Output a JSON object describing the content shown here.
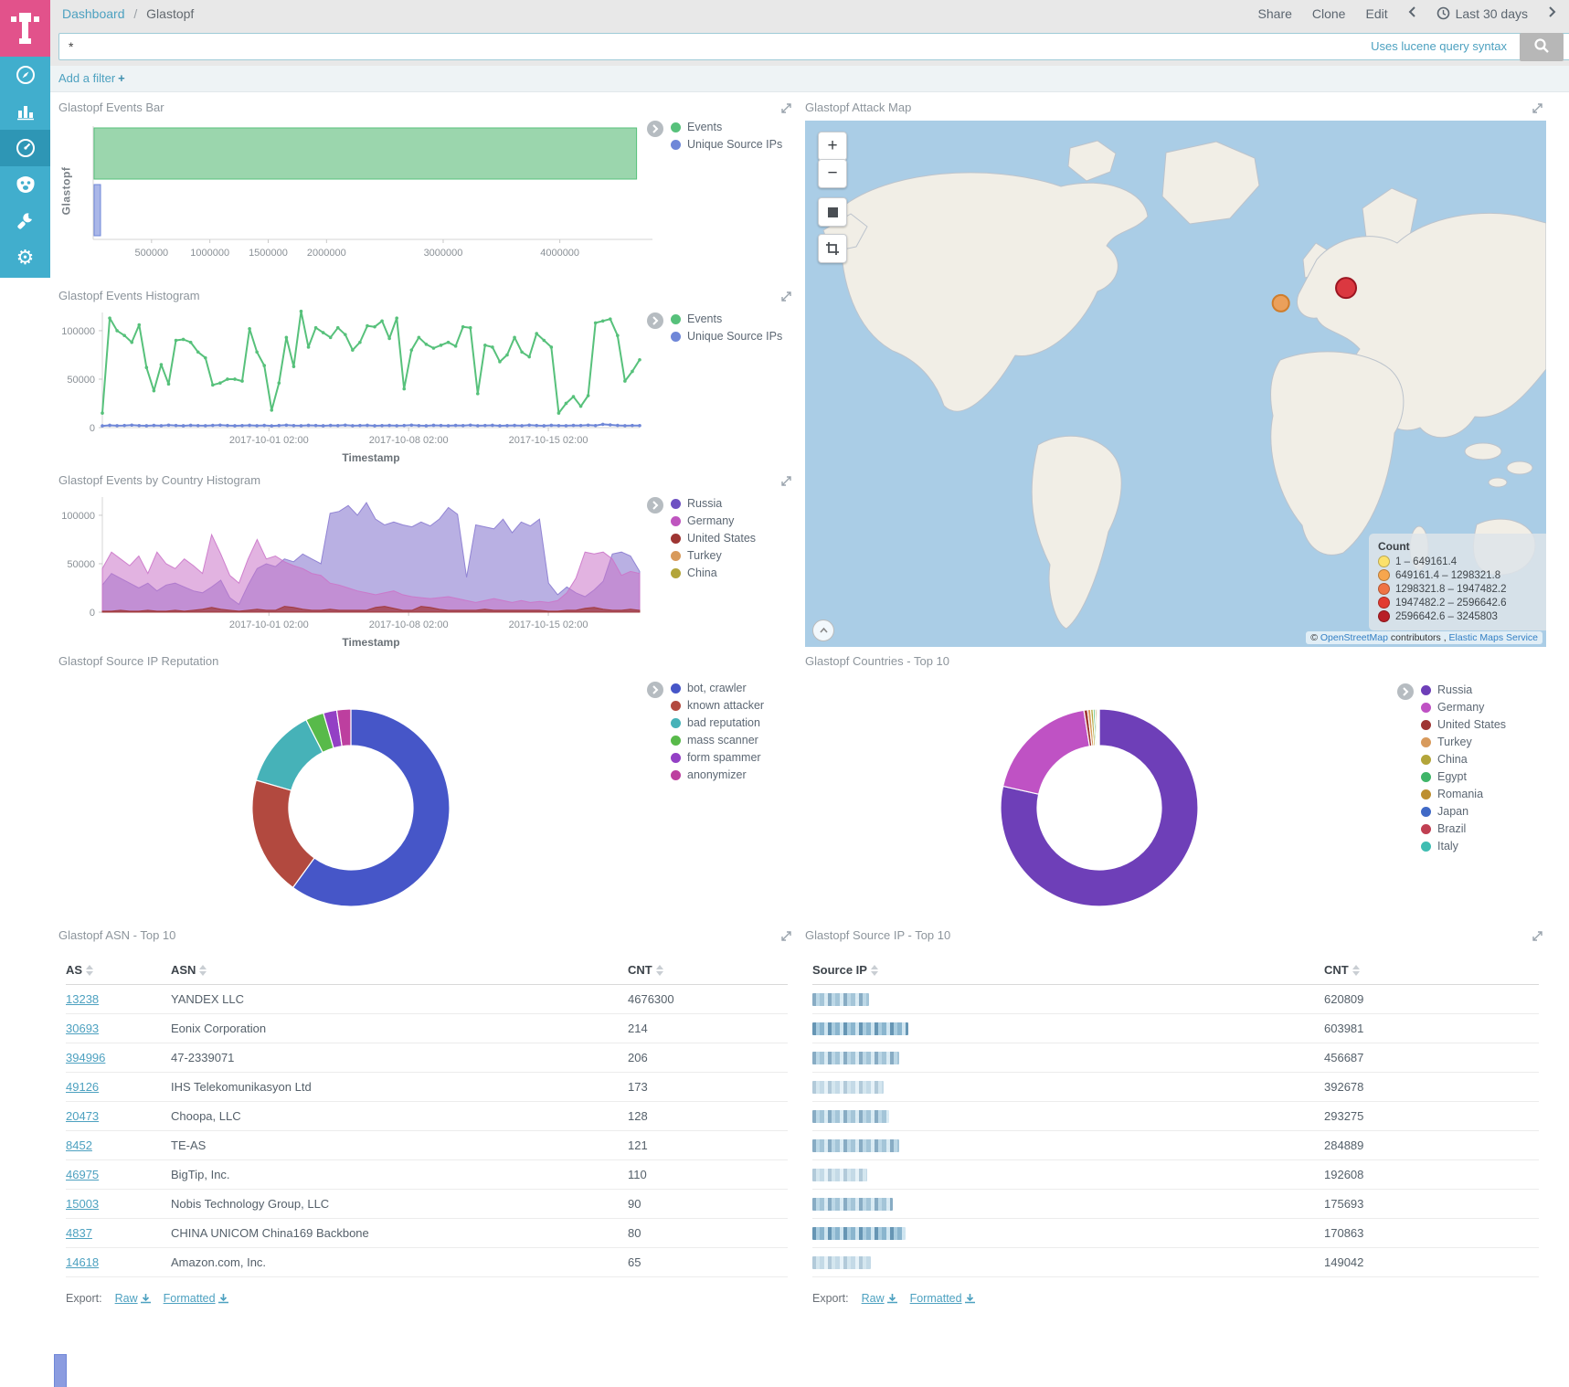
{
  "app": {
    "breadcrumb": {
      "root": "Dashboard",
      "sep": "/",
      "current": "Glastopf"
    },
    "actions": {
      "share": "Share",
      "clone": "Clone",
      "edit": "Edit",
      "time_range": "Last 30 days"
    },
    "query": {
      "value": "*",
      "hint": "Uses lucene query syntax"
    },
    "filter_bar": {
      "add_filter": "Add a filter",
      "plus": "+"
    }
  },
  "sidebar": {
    "items": [
      "discover",
      "visualize",
      "dashboard",
      "timelion",
      "dev-tools",
      "management"
    ],
    "active": "dashboard"
  },
  "panels": {
    "events_bar": {
      "title": "Glastopf Events Bar",
      "ylabel": "Glastopf"
    },
    "events_histogram": {
      "title": "Glastopf Events Histogram",
      "xlabel": "Timestamp"
    },
    "country_histogram": {
      "title": "Glastopf Events by Country Histogram",
      "xlabel": "Timestamp"
    },
    "attack_map": {
      "title": "Glastopf Attack Map",
      "controls": {
        "zoom_in": "+",
        "zoom_out": "−"
      },
      "legend_title": "Count",
      "legend_ranges": [
        {
          "label": "1 – 649161.4",
          "color": "#fbe16b"
        },
        {
          "label": "649161.4 – 1298321.8",
          "color": "#f7a64e"
        },
        {
          "label": "1298321.8 – 1947482.2",
          "color": "#ef7344"
        },
        {
          "label": "1947482.2 – 2596642.6",
          "color": "#e23b31"
        },
        {
          "label": "2596642.6 – 3245803",
          "color": "#b81f26"
        }
      ],
      "attribution": {
        "prefix": "©",
        "link1": "OpenStreetMap",
        "mid": "contributors ,",
        "link2": "Elastic Maps Service"
      }
    },
    "reputation_pie": {
      "title": "Glastopf Source IP Reputation"
    },
    "countries_pie": {
      "title": "Glastopf Countries - Top 10"
    },
    "asn_table": {
      "title": "Glastopf ASN - Top 10",
      "columns": [
        "AS",
        "ASN",
        "CNT"
      ],
      "rows": [
        {
          "as": "13238",
          "asn": "YANDEX LLC",
          "cnt": "4676300"
        },
        {
          "as": "30693",
          "asn": "Eonix Corporation",
          "cnt": "214"
        },
        {
          "as": "394996",
          "asn": "47-2339071",
          "cnt": "206"
        },
        {
          "as": "49126",
          "asn": "IHS Telekomunikasyon Ltd",
          "cnt": "173"
        },
        {
          "as": "20473",
          "asn": "Choopa, LLC",
          "cnt": "128"
        },
        {
          "as": "8452",
          "asn": "TE-AS",
          "cnt": "121"
        },
        {
          "as": "46975",
          "asn": "BigTip, Inc.",
          "cnt": "110"
        },
        {
          "as": "15003",
          "asn": "Nobis Technology Group, LLC",
          "cnt": "90"
        },
        {
          "as": "4837",
          "asn": "CHINA UNICOM China169 Backbone",
          "cnt": "80"
        },
        {
          "as": "14618",
          "asn": "Amazon.com, Inc.",
          "cnt": "65"
        }
      ],
      "export": {
        "label": "Export:",
        "raw": "Raw",
        "formatted": "Formatted"
      }
    },
    "ip_table": {
      "title": "Glastopf Source IP - Top 10",
      "columns": [
        "Source IP",
        "CNT"
      ],
      "rows": [
        {
          "masked": true,
          "blur_width": 62,
          "tone": "t-med",
          "cnt": "620809"
        },
        {
          "masked": true,
          "blur_width": 105,
          "tone": "t-dark",
          "cnt": "603981"
        },
        {
          "masked": true,
          "blur_width": 95,
          "tone": "t-med",
          "cnt": "456687"
        },
        {
          "masked": true,
          "blur_width": 78,
          "tone": "t-light",
          "cnt": "392678"
        },
        {
          "masked": true,
          "blur_width": 84,
          "tone": "t-med",
          "cnt": "293275"
        },
        {
          "masked": true,
          "blur_width": 95,
          "tone": "t-med",
          "cnt": "284889"
        },
        {
          "masked": true,
          "blur_width": 60,
          "tone": "t-light",
          "cnt": "192608"
        },
        {
          "masked": true,
          "blur_width": 88,
          "tone": "t-med",
          "cnt": "175693"
        },
        {
          "masked": true,
          "blur_width": 102,
          "tone": "t-dark",
          "cnt": "170863"
        },
        {
          "masked": true,
          "blur_width": 64,
          "tone": "t-light",
          "cnt": "149042"
        }
      ],
      "export": {
        "label": "Export:",
        "raw": "Raw",
        "formatted": "Formatted"
      }
    }
  },
  "chart_data": {
    "events_bar": {
      "type": "bar",
      "orientation": "horizontal",
      "categories": [
        "Events",
        "Unique Source IPs"
      ],
      "values": [
        4650000,
        30000
      ],
      "xlim": [
        0,
        4700000
      ],
      "xticks": [
        500000,
        1000000,
        1500000,
        2000000,
        3000000,
        4000000
      ],
      "ylabel": "Glastopf",
      "legend": [
        {
          "label": "Events",
          "color": "#57c17b"
        },
        {
          "label": "Unique Source IPs",
          "color": "#6f87d8"
        }
      ]
    },
    "events_histogram": {
      "type": "line",
      "ylim": [
        0,
        115000
      ],
      "yticks": [
        0,
        50000,
        100000
      ],
      "xticks": [
        {
          "label": "2017-10-01 02:00",
          "pos": 0.31
        },
        {
          "label": "2017-10-08 02:00",
          "pos": 0.57
        },
        {
          "label": "2017-10-15 02:00",
          "pos": 0.83
        }
      ],
      "xlabel": "Timestamp",
      "legend": [
        {
          "label": "Events",
          "color": "#57c17b"
        },
        {
          "label": "Unique Source IPs",
          "color": "#6f87d8"
        }
      ],
      "series": [
        {
          "name": "Events",
          "color": "#57c17b",
          "values": [
            15000,
            113000,
            100000,
            95000,
            88000,
            106000,
            62000,
            38000,
            65000,
            45000,
            90000,
            91000,
            88000,
            78000,
            72000,
            44000,
            46000,
            50000,
            50000,
            48000,
            102000,
            78000,
            64000,
            18000,
            46000,
            93000,
            63000,
            120000,
            83000,
            103000,
            98000,
            93000,
            103000,
            96000,
            80000,
            88000,
            105000,
            104000,
            110000,
            92000,
            113000,
            40000,
            80000,
            93000,
            86000,
            82000,
            85000,
            88000,
            84000,
            104000,
            103000,
            35000,
            85000,
            83000,
            68000,
            75000,
            93000,
            78000,
            73000,
            97000,
            90000,
            83000,
            15000,
            25000,
            32000,
            22000,
            33000,
            108000,
            110000,
            112000,
            95000,
            48000,
            58000,
            70000
          ]
        },
        {
          "name": "Unique Source IPs",
          "color": "#6f87d8",
          "values": [
            1800,
            2400,
            2000,
            2200,
            2600,
            2100,
            1900,
            2300,
            2000,
            2500,
            2200,
            1900,
            2400,
            2100,
            2000,
            2300,
            2600,
            2200,
            1900,
            2100,
            2400,
            2000,
            2300,
            1800,
            2200,
            2500,
            2100,
            2000,
            2400,
            2200,
            1900,
            2300,
            2100,
            2500,
            2000,
            2200,
            2400,
            1900,
            2100,
            2300,
            2000,
            2200,
            2500,
            2100,
            1900,
            2400,
            2200,
            2000,
            2300,
            2100,
            2600,
            2000,
            2200,
            2400,
            1900,
            2100,
            2300,
            2000,
            2500,
            2200,
            1900,
            2400,
            2100,
            2000,
            2300,
            2200,
            2600,
            2100,
            3400,
            2800,
            2300,
            2000,
            2200,
            2100
          ]
        }
      ]
    },
    "country_histogram": {
      "type": "area",
      "ylim": [
        0,
        115000
      ],
      "yticks": [
        0,
        50000,
        100000
      ],
      "xticks": [
        {
          "label": "2017-10-01 02:00",
          "pos": 0.31
        },
        {
          "label": "2017-10-08 02:00",
          "pos": 0.57
        },
        {
          "label": "2017-10-15 02:00",
          "pos": 0.83
        }
      ],
      "xlabel": "Timestamp",
      "legend": [
        {
          "label": "Russia",
          "color": "#6e51c2"
        },
        {
          "label": "Germany",
          "color": "#bf55bf"
        },
        {
          "label": "United States",
          "color": "#9e3533"
        },
        {
          "label": "Turkey",
          "color": "#d89a5c"
        },
        {
          "label": "China",
          "color": "#b3a53a"
        }
      ],
      "series": [
        {
          "name": "Russia",
          "color": "#8a7bd0",
          "opacity": 0.6,
          "values": [
            28000,
            40000,
            35000,
            30000,
            25000,
            30000,
            22000,
            28000,
            30000,
            26000,
            22000,
            20000,
            26000,
            33000,
            15000,
            8000,
            28000,
            45000,
            50000,
            47000,
            55000,
            52000,
            60000,
            55000,
            50000,
            102000,
            104000,
            110000,
            100000,
            113000,
            96000,
            90000,
            93000,
            90000,
            88000,
            93000,
            89000,
            96000,
            108000,
            101000,
            36000,
            90000,
            88000,
            86000,
            96000,
            82000,
            93000,
            89000,
            96000,
            30000,
            18000,
            26000,
            20000,
            16000,
            23000,
            32000,
            60000,
            62000,
            58000,
            42000
          ]
        },
        {
          "name": "Germany",
          "color": "#cb75c9",
          "opacity": 0.55,
          "values": [
            45000,
            62000,
            55000,
            48000,
            58000,
            40000,
            62000,
            50000,
            45000,
            55000,
            48000,
            40000,
            80000,
            60000,
            38000,
            30000,
            55000,
            75000,
            55000,
            58000,
            52000,
            48000,
            45000,
            40000,
            38000,
            30000,
            28000,
            25000,
            22000,
            20000,
            18000,
            20000,
            22000,
            18000,
            16000,
            15000,
            14000,
            15000,
            16000,
            14000,
            12000,
            10000,
            12000,
            14000,
            12000,
            10000,
            12000,
            10000,
            11000,
            10000,
            12000,
            20000,
            35000,
            62000,
            60000,
            62000,
            55000,
            38000,
            42000,
            40000
          ]
        },
        {
          "name": "United States",
          "color": "#9e3533",
          "opacity": 0.7,
          "values": [
            1000,
            1000,
            2000,
            1000,
            1000,
            2000,
            1000,
            1000,
            2000,
            1000,
            2000,
            3000,
            5000,
            3000,
            2000,
            1000,
            2000,
            3000,
            2000,
            2000,
            6000,
            5000,
            3000,
            2000,
            2000,
            3000,
            2000,
            2000,
            2000,
            2000,
            5000,
            6000,
            4000,
            2000,
            2000,
            6000,
            5000,
            3000,
            2000,
            2000,
            2000,
            2000,
            3000,
            2000,
            2000,
            2000,
            2000,
            2000,
            2000,
            1000,
            1000,
            2000,
            2000,
            4000,
            5000,
            3000,
            2000,
            2000,
            3000,
            2000
          ]
        }
      ]
    },
    "reputation_donut": {
      "type": "pie",
      "slices": [
        {
          "label": "bot, crawler",
          "color": "#4656c8",
          "pct": 60
        },
        {
          "label": "known attacker",
          "color": "#b2493f",
          "pct": 19.5
        },
        {
          "label": "bad reputation",
          "color": "#46b2b8",
          "pct": 13
        },
        {
          "label": "mass scanner",
          "color": "#58ba4a",
          "pct": 3
        },
        {
          "label": "form spammer",
          "color": "#9340c5",
          "pct": 2.2
        },
        {
          "label": "anonymizer",
          "color": "#bd3f9f",
          "pct": 2.3
        }
      ]
    },
    "countries_donut": {
      "type": "pie",
      "slices": [
        {
          "label": "Russia",
          "color": "#6e3fb8",
          "pct": 78.5
        },
        {
          "label": "Germany",
          "color": "#bf52c4",
          "pct": 19.0
        },
        {
          "label": "United States",
          "color": "#9e3533",
          "pct": 0.6
        },
        {
          "label": "Turkey",
          "color": "#d89a5c",
          "pct": 0.5
        },
        {
          "label": "China",
          "color": "#b3a53a",
          "pct": 0.4
        },
        {
          "label": "Egypt",
          "color": "#3fb568",
          "pct": 0.3
        },
        {
          "label": "Romania",
          "color": "#bd8f30",
          "pct": 0.25
        },
        {
          "label": "Japan",
          "color": "#4069c6",
          "pct": 0.2
        },
        {
          "label": "Brazil",
          "color": "#c03f52",
          "pct": 0.15
        },
        {
          "label": "Italy",
          "color": "#3fbdb2",
          "pct": 0.1
        }
      ]
    },
    "attack_map_markers": [
      {
        "x": 0.642,
        "y": 0.347,
        "r": 9,
        "color": "#f29b4b",
        "border": "#cf7d2c"
      },
      {
        "x": 0.73,
        "y": 0.318,
        "r": 11,
        "color": "#d8232e",
        "border": "#9c1622"
      }
    ]
  }
}
